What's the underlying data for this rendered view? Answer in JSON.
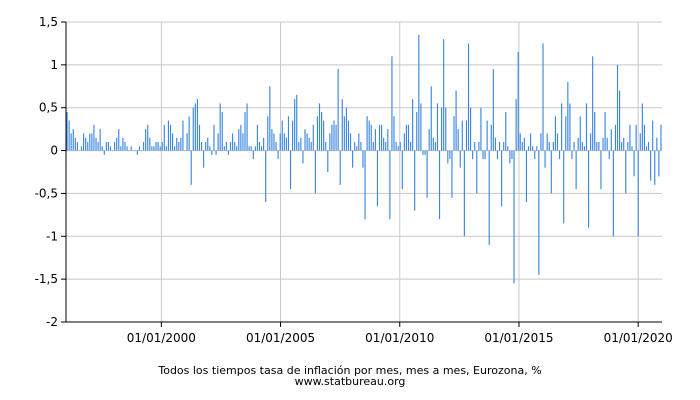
{
  "chart_data": {
    "type": "bar",
    "title": "Todos los tiempos tasa de inflación por mes, mes a mes, Eurozona, %",
    "source": "www.statbureau.org",
    "xlabel": "",
    "ylabel": "",
    "x_start": "1996-01",
    "x_end": "2020-12",
    "x_ticks": [
      "01/01/2000",
      "01/01/2005",
      "01/01/2010",
      "01/01/2015",
      "01/01/2020"
    ],
    "y_ticks": [
      "-2",
      "-1,5",
      "-1",
      "-0,5",
      "0",
      "0,5",
      "1",
      "1,5"
    ],
    "ylim": [
      -2,
      1.5
    ],
    "grid": true,
    "bar_color": "#3a86e0",
    "series": [
      {
        "values": [
          0.45,
          0.35,
          0.2,
          0.25,
          0.15,
          0.1,
          0.0,
          0.05,
          0.2,
          0.15,
          0.1,
          0.2,
          0.2,
          0.3,
          0.15,
          0.1,
          0.25,
          0.05,
          -0.05,
          0.1,
          0.1,
          0.05,
          0.0,
          0.1,
          0.15,
          0.25,
          0.05,
          0.15,
          0.1,
          0.05,
          0.0,
          0.05,
          0.0,
          0.0,
          -0.05,
          0.05,
          0.0,
          0.1,
          0.25,
          0.3,
          0.15,
          0.05,
          0.05,
          0.1,
          0.1,
          0.05,
          0.1,
          0.3,
          0.05,
          0.35,
          0.3,
          0.2,
          0.05,
          0.15,
          0.1,
          0.15,
          0.35,
          0.0,
          0.2,
          0.4,
          -0.4,
          0.5,
          0.55,
          0.6,
          0.3,
          0.1,
          -0.2,
          0.1,
          0.15,
          0.05,
          -0.05,
          0.3,
          -0.05,
          0.2,
          0.55,
          0.45,
          0.05,
          0.1,
          -0.05,
          0.1,
          0.2,
          0.1,
          0.05,
          0.25,
          0.3,
          0.2,
          0.45,
          0.55,
          0.05,
          0.05,
          -0.1,
          0.05,
          0.3,
          0.1,
          0.05,
          0.15,
          -0.6,
          0.4,
          0.75,
          0.25,
          0.2,
          0.1,
          -0.1,
          0.2,
          0.35,
          0.2,
          0.15,
          0.4,
          -0.45,
          0.35,
          0.6,
          0.65,
          0.1,
          0.15,
          -0.15,
          0.25,
          0.2,
          0.15,
          0.1,
          0.3,
          -0.5,
          0.4,
          0.55,
          0.45,
          0.35,
          0.1,
          -0.25,
          0.2,
          0.3,
          0.35,
          0.3,
          0.95,
          -0.4,
          0.6,
          0.4,
          0.5,
          0.35,
          0.2,
          -0.2,
          0.1,
          0.05,
          0.2,
          0.1,
          -0.2,
          -0.8,
          0.4,
          0.35,
          0.3,
          0.1,
          0.25,
          -0.65,
          0.3,
          0.3,
          0.15,
          0.1,
          0.25,
          -0.8,
          1.1,
          0.4,
          0.1,
          0.05,
          0.1,
          -0.45,
          0.2,
          0.3,
          0.3,
          0.1,
          0.6,
          -0.7,
          0.45,
          1.35,
          0.55,
          -0.05,
          -0.05,
          -0.55,
          0.25,
          0.75,
          0.15,
          0.1,
          0.55,
          -0.8,
          0.5,
          1.3,
          0.5,
          -0.15,
          -0.1,
          -0.55,
          0.4,
          0.7,
          0.25,
          -0.2,
          0.35,
          -1.0,
          0.35,
          1.25,
          0.5,
          -0.1,
          0.1,
          -0.5,
          0.1,
          0.5,
          -0.1,
          -0.1,
          0.35,
          -1.1,
          0.3,
          0.95,
          0.15,
          -0.1,
          0.1,
          -0.65,
          0.1,
          0.45,
          0.05,
          -0.15,
          -0.1,
          -1.55,
          0.6,
          1.15,
          0.2,
          0.1,
          0.15,
          -0.6,
          0.05,
          0.2,
          0.05,
          -0.1,
          0.05,
          -1.45,
          0.2,
          1.25,
          -0.2,
          0.2,
          0.1,
          -0.5,
          0.1,
          0.4,
          0.2,
          -0.1,
          0.55,
          -0.85,
          0.4,
          0.8,
          0.55,
          -0.1,
          0.1,
          -0.45,
          0.15,
          0.4,
          0.1,
          0.05,
          0.55,
          -0.9,
          0.2,
          1.1,
          0.45,
          0.1,
          0.1,
          -0.45,
          0.15,
          0.45,
          0.15,
          -0.1,
          0.25,
          -1.0,
          0.3,
          1.0,
          0.7,
          0.1,
          0.15,
          -0.5,
          0.1,
          0.3,
          0.05,
          -0.3,
          0.3,
          -1.0,
          0.2,
          0.55,
          0.3,
          0.05,
          0.1,
          -0.35,
          0.35,
          -0.4,
          0.15,
          -0.3,
          0.3
        ]
      }
    ]
  }
}
